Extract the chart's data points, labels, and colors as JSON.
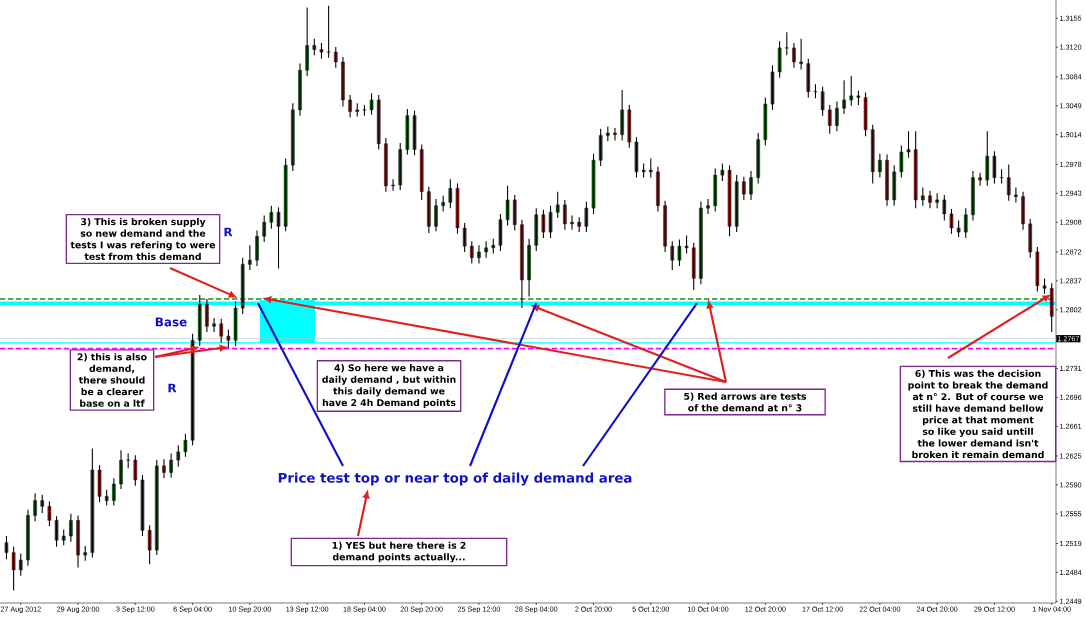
{
  "chart_data": {
    "type": "candlestick",
    "categories": [
      null,
      null,
      "27 Aug 2012",
      null,
      null,
      null,
      null,
      null,
      null,
      null,
      "29 Aug 20:00",
      null,
      null,
      null,
      null,
      null,
      null,
      null,
      "3 Sep 12:00",
      null,
      null,
      null,
      null,
      null,
      null,
      null,
      "6 Sep 04:00",
      null,
      null,
      null,
      null,
      null,
      null,
      null,
      "10 Sep 20:00",
      null,
      null,
      null,
      null,
      null,
      null,
      null,
      "13 Sep 12:00",
      null,
      null,
      null,
      null,
      null,
      null,
      null,
      "18 Sep 04:00",
      null,
      null,
      null,
      null,
      null,
      null,
      null,
      "20 Sep 20:00",
      null,
      null,
      null,
      null,
      null,
      null,
      null,
      "25 Sep 12:00",
      null,
      null,
      null,
      null,
      null,
      null,
      null,
      "28 Sep 04:00",
      null,
      null,
      null,
      null,
      null,
      null,
      null,
      "2 Oct 20:00",
      null,
      null,
      null,
      null,
      null,
      null,
      null,
      "5 Oct 12:00",
      null,
      null,
      null,
      null,
      null,
      null,
      null,
      "10 Oct 04:00",
      null,
      null,
      null,
      null,
      null,
      null,
      null,
      "12 Oct 20:00",
      null,
      null,
      null,
      null,
      null,
      null,
      null,
      "17 Oct 12:00",
      null,
      null,
      null,
      null,
      null,
      null,
      null,
      "22 Oct 04:00",
      null,
      null,
      null,
      null,
      null,
      null,
      null,
      "24 Oct 20:00",
      null,
      null,
      null,
      null,
      null,
      null,
      null,
      "29 Oct 12:00",
      null,
      null,
      null,
      null,
      null,
      null,
      null,
      "1 Nov 04:00"
    ],
    "ohlc": [
      [
        1.252,
        1.2528,
        1.25,
        1.2508
      ],
      [
        1.2508,
        1.2515,
        1.2462,
        1.2487
      ],
      [
        1.2487,
        1.2507,
        1.248,
        1.2499
      ],
      [
        1.2499,
        1.256,
        1.2492,
        1.2553
      ],
      [
        1.2553,
        1.258,
        1.2546,
        1.2571
      ],
      [
        1.2571,
        1.2578,
        1.2556,
        1.2564
      ],
      [
        1.2564,
        1.257,
        1.254,
        1.2547
      ],
      [
        1.2547,
        1.2552,
        1.2515,
        1.2523
      ],
      [
        1.2523,
        1.2536,
        1.2517,
        1.2528
      ],
      [
        1.2528,
        1.2555,
        1.2521,
        1.2547
      ],
      [
        1.2547,
        1.2553,
        1.249,
        1.2505
      ],
      [
        1.2505,
        1.2516,
        1.2498,
        1.2508
      ],
      [
        1.2508,
        1.2634,
        1.2502,
        1.2608
      ],
      [
        1.2608,
        1.2614,
        1.2569,
        1.2576
      ],
      [
        1.2576,
        1.2584,
        1.2565,
        1.2571
      ],
      [
        1.2571,
        1.2598,
        1.2565,
        1.2591
      ],
      [
        1.2591,
        1.2632,
        1.2585,
        1.262
      ],
      [
        1.262,
        1.2628,
        1.261,
        1.262
      ],
      [
        1.262,
        1.2626,
        1.2589,
        1.2596
      ],
      [
        1.2596,
        1.2602,
        1.2528,
        1.2535
      ],
      [
        1.2535,
        1.2541,
        1.2494,
        1.2511
      ],
      [
        1.2511,
        1.262,
        1.2505,
        1.2613
      ],
      [
        1.2613,
        1.2621,
        1.2598,
        1.2605
      ],
      [
        1.2605,
        1.2628,
        1.2599,
        1.262
      ],
      [
        1.262,
        1.2638,
        1.2612,
        1.263
      ],
      [
        1.263,
        1.2652,
        1.2624,
        1.2644
      ],
      [
        1.2644,
        1.2773,
        1.2638,
        1.2765
      ],
      [
        1.2765,
        1.282,
        1.2758,
        1.2809
      ],
      [
        1.2809,
        1.2815,
        1.2775,
        1.2782
      ],
      [
        1.2782,
        1.2792,
        1.2775,
        1.2785
      ],
      [
        1.2785,
        1.2791,
        1.2762,
        1.277
      ],
      [
        1.277,
        1.2778,
        1.2756,
        1.2765
      ],
      [
        1.2765,
        1.2812,
        1.2758,
        1.2804
      ],
      [
        1.2804,
        1.2865,
        1.2797,
        1.2857
      ],
      [
        1.2857,
        1.288,
        1.285,
        1.2862
      ],
      [
        1.2862,
        1.2898,
        1.2855,
        1.2891
      ],
      [
        1.2891,
        1.2916,
        1.2884,
        1.2908
      ],
      [
        1.2908,
        1.2928,
        1.29,
        1.292
      ],
      [
        1.292,
        1.2926,
        1.2852,
        1.2903
      ],
      [
        1.2903,
        1.2985,
        1.2897,
        1.2977
      ],
      [
        1.2977,
        1.3052,
        1.297,
        1.3044
      ],
      [
        1.3044,
        1.31,
        1.3037,
        1.3092
      ],
      [
        1.3092,
        1.3168,
        1.3085,
        1.3122
      ],
      [
        1.3122,
        1.313,
        1.311,
        1.3117
      ],
      [
        1.3117,
        1.3125,
        1.3106,
        1.3114
      ],
      [
        1.3114,
        1.317,
        1.3107,
        1.3114
      ],
      [
        1.3114,
        1.312,
        1.3095,
        1.3102
      ],
      [
        1.3102,
        1.3108,
        1.3048,
        1.3056
      ],
      [
        1.3056,
        1.3062,
        1.3035,
        1.3042
      ],
      [
        1.3042,
        1.3052,
        1.3036,
        1.3044
      ],
      [
        1.3044,
        1.305,
        1.3037,
        1.3044
      ],
      [
        1.3044,
        1.3064,
        1.3038,
        1.3056
      ],
      [
        1.3056,
        1.3062,
        1.2996,
        1.3003
      ],
      [
        1.3003,
        1.301,
        1.2945,
        1.2952
      ],
      [
        1.2952,
        1.296,
        1.2946,
        1.2953
      ],
      [
        1.2953,
        1.3004,
        1.2947,
        1.2996
      ],
      [
        1.2996,
        1.3045,
        1.299,
        1.3037
      ],
      [
        1.3037,
        1.3043,
        1.2989,
        1.2996
      ],
      [
        1.2996,
        1.3002,
        1.2935,
        1.2945
      ],
      [
        1.2945,
        1.2951,
        1.2895,
        1.2903
      ],
      [
        1.2903,
        1.2936,
        1.2897,
        1.2928
      ],
      [
        1.2928,
        1.294,
        1.2921,
        1.2932
      ],
      [
        1.2932,
        1.296,
        1.2925,
        1.2949
      ],
      [
        1.2949,
        1.2955,
        1.2894,
        1.2901
      ],
      [
        1.2901,
        1.2907,
        1.2872,
        1.2879
      ],
      [
        1.2879,
        1.2885,
        1.2858,
        1.2865
      ],
      [
        1.2865,
        1.288,
        1.2858,
        1.2872
      ],
      [
        1.2872,
        1.2885,
        1.2865,
        1.2877
      ],
      [
        1.2877,
        1.2888,
        1.287,
        1.288
      ],
      [
        1.288,
        1.2918,
        1.2873,
        1.2911
      ],
      [
        1.2911,
        1.2952,
        1.2904,
        1.2935
      ],
      [
        1.2935,
        1.2941,
        1.2898,
        1.2905
      ],
      [
        1.2905,
        1.2911,
        1.2804,
        1.2838
      ],
      [
        1.2838,
        1.2888,
        1.2818,
        1.288
      ],
      [
        1.288,
        1.2925,
        1.2873,
        1.2917
      ],
      [
        1.2917,
        1.2923,
        1.2889,
        1.2896
      ],
      [
        1.2896,
        1.2928,
        1.2889,
        1.292
      ],
      [
        1.292,
        1.2945,
        1.2913,
        1.2929
      ],
      [
        1.2929,
        1.2935,
        1.2899,
        1.2906
      ],
      [
        1.2906,
        1.2916,
        1.2899,
        1.2908
      ],
      [
        1.2908,
        1.2914,
        1.2896,
        1.2903
      ],
      [
        1.2903,
        1.2933,
        1.2896,
        1.2925
      ],
      [
        1.2925,
        1.2991,
        1.2918,
        1.2983
      ],
      [
        1.2983,
        1.3021,
        1.2976,
        1.3013
      ],
      [
        1.3013,
        1.3024,
        1.3006,
        1.3016
      ],
      [
        1.3016,
        1.3022,
        1.3007,
        1.3014
      ],
      [
        1.3014,
        1.3068,
        1.3007,
        1.3044
      ],
      [
        1.3044,
        1.305,
        1.2998,
        1.3005
      ],
      [
        1.3005,
        1.3011,
        1.2962,
        1.2969
      ],
      [
        1.2969,
        1.2979,
        1.2962,
        1.2971
      ],
      [
        1.2971,
        1.2985,
        1.2962,
        1.2969
      ],
      [
        1.2969,
        1.2975,
        1.2921,
        1.2928
      ],
      [
        1.2928,
        1.2934,
        1.2872,
        1.2879
      ],
      [
        1.2879,
        1.2885,
        1.285,
        1.2862
      ],
      [
        1.2862,
        1.2887,
        1.2855,
        1.2879
      ],
      [
        1.2879,
        1.2892,
        1.287,
        1.2877
      ],
      [
        1.2877,
        1.2883,
        1.2826,
        1.284
      ],
      [
        1.284,
        1.2933,
        1.2833,
        1.2925
      ],
      [
        1.2925,
        1.2936,
        1.2918,
        1.2928
      ],
      [
        1.2928,
        1.2973,
        1.2921,
        1.2965
      ],
      [
        1.2965,
        1.2979,
        1.2958,
        1.2971
      ],
      [
        1.2971,
        1.2977,
        1.2891,
        1.2903
      ],
      [
        1.2903,
        1.2965,
        1.2896,
        1.2957
      ],
      [
        1.2957,
        1.2963,
        1.2935,
        1.2942
      ],
      [
        1.2942,
        1.297,
        1.2935,
        1.2962
      ],
      [
        1.2962,
        1.3016,
        1.2955,
        1.3008
      ],
      [
        1.3008,
        1.3059,
        1.3001,
        1.3051
      ],
      [
        1.3051,
        1.3098,
        1.3044,
        1.309
      ],
      [
        1.309,
        1.3127,
        1.3083,
        1.3119
      ],
      [
        1.3119,
        1.3138,
        1.311,
        1.3119
      ],
      [
        1.3119,
        1.3125,
        1.3095,
        1.3102
      ],
      [
        1.3102,
        1.313,
        1.3093,
        1.31
      ],
      [
        1.31,
        1.3106,
        1.3059,
        1.3066
      ],
      [
        1.3066,
        1.3075,
        1.3058,
        1.3066
      ],
      [
        1.3066,
        1.3072,
        1.3037,
        1.3044
      ],
      [
        1.3044,
        1.305,
        1.3015,
        1.3025
      ],
      [
        1.3025,
        1.3054,
        1.3018,
        1.3046
      ],
      [
        1.3046,
        1.308,
        1.3039,
        1.3056
      ],
      [
        1.3056,
        1.3085,
        1.3049,
        1.3061
      ],
      [
        1.3061,
        1.3067,
        1.305,
        1.3059
      ],
      [
        1.3059,
        1.3065,
        1.3012,
        1.302
      ],
      [
        1.302,
        1.3026,
        1.2955,
        1.2969
      ],
      [
        1.2969,
        1.2991,
        1.2962,
        1.2983
      ],
      [
        1.2983,
        1.299,
        1.2928,
        1.2935
      ],
      [
        1.2935,
        1.2977,
        1.2928,
        1.2969
      ],
      [
        1.2969,
        1.3001,
        1.2962,
        1.2993
      ],
      [
        1.2993,
        1.3018,
        1.2986,
        1.2996
      ],
      [
        1.2996,
        1.3018,
        1.2925,
        1.2935
      ],
      [
        1.2935,
        1.295,
        1.2928,
        1.294
      ],
      [
        1.294,
        1.2946,
        1.2925,
        1.2932
      ],
      [
        1.2932,
        1.2943,
        1.2925,
        1.2935
      ],
      [
        1.2935,
        1.2941,
        1.291,
        1.2918
      ],
      [
        1.2918,
        1.2924,
        1.2894,
        1.2901
      ],
      [
        1.2901,
        1.291,
        1.289,
        1.2896
      ],
      [
        1.2896,
        1.2925,
        1.2889,
        1.2917
      ],
      [
        1.2917,
        1.297,
        1.291,
        1.2962
      ],
      [
        1.2962,
        1.2968,
        1.2952,
        1.2959
      ],
      [
        1.2959,
        1.3018,
        1.2952,
        1.2988
      ],
      [
        1.2988,
        1.2994,
        1.2955,
        1.2962
      ],
      [
        1.2962,
        1.2972,
        1.2955,
        1.2962
      ],
      [
        1.2962,
        1.2978,
        1.2934,
        1.2941
      ],
      [
        1.2941,
        1.295,
        1.2932,
        1.2939
      ],
      [
        1.2939,
        1.2945,
        1.2899,
        1.2906
      ],
      [
        1.2906,
        1.2912,
        1.2865,
        1.2872
      ],
      [
        1.2872,
        1.2878,
        1.2824,
        1.2831
      ],
      [
        1.2831,
        1.284,
        1.2821,
        1.2828
      ],
      [
        1.2828,
        1.2834,
        1.2775,
        1.2794
      ]
    ],
    "ylim": [
      1.2447,
      1.3177
    ],
    "yticks": [
      1.3155,
      {
        "value": 1.312,
        "label": "1.3120"
      },
      1.3084,
      1.3049,
      1.3014,
      1.2978,
      1.2943,
      1.2908,
      1.2872,
      1.2837,
      1.2802,
      1.2731,
      1.2696,
      1.2661,
      1.2625,
      {
        "value": 1.259,
        "label": "1.2590"
      },
      1.2555,
      1.2519,
      1.2484,
      1.2449
    ],
    "ref_lines": [
      {
        "axis": "y",
        "value": 1.2767,
        "label": "1.2767",
        "color": "#c0c0c0"
      },
      {
        "axis": "y",
        "value": 1.2815,
        "color": "#228b22",
        "line_style": "dashed"
      },
      {
        "axis": "y",
        "value": 1.2755,
        "color": "#ff00ff",
        "line_style": "dashed"
      },
      {
        "axis": "y",
        "value": 1.281,
        "color": "#00ffff",
        "line_style": "solid"
      },
      {
        "axis": "y",
        "value": 1.2762,
        "color": "#00ffff",
        "line_style": "solid"
      }
    ],
    "annotations": [
      "1) YES but here there is 2 demand points actually...",
      {
        "text": "2) this is also demand, there should be a clearer base on a ltf",
        "y": 1.2757
      },
      "3) This is broken supply so new demand and the tests I was refering to were test from this demand",
      "4) So here we have a daily demand , but within this daily demand we have 2 4h Demand points",
      {
        "text": "5) Red arrows are tests of the demand at n° 3",
        "x": "10 Oct 04:00",
        "y": 1.2815
      },
      {
        "text": "6) This was the decision point to break the demand at n° 2. But of course we still have demand bellow price at that moment so like you said untill the lower demand isn't broken it remain demand",
        "x": "1 Nov 04:00",
        "y": 1.2821
      },
      {
        "text": "Price test top or near top of daily demand area",
        "x": "28 Sep 04:00",
        "y": 1.281
      },
      "Base",
      "R",
      "R"
    ]
  }
}
